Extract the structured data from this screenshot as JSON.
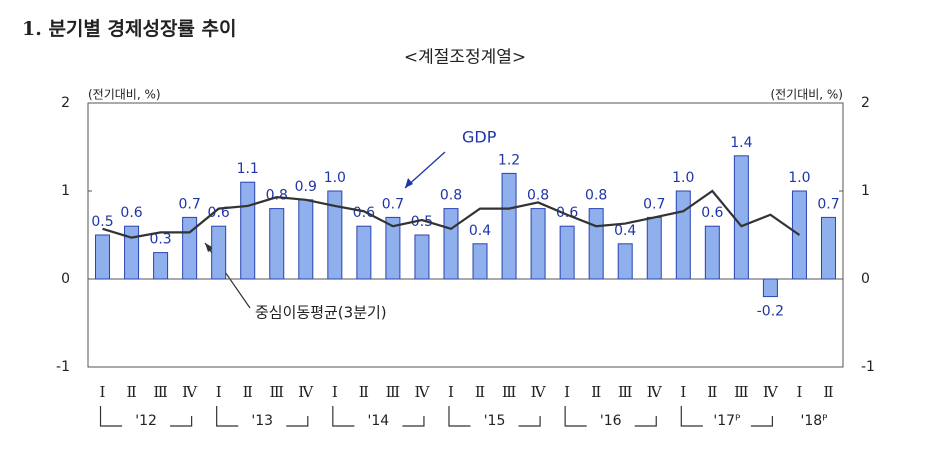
{
  "chart_data": {
    "type": "bar",
    "title": "1. 분기별 경제성장률 추이",
    "subtitle": "<계절조정계열>",
    "y_label": "(전기대비, %)",
    "y2_label": "(전기대비, %)",
    "categories": [
      "Ⅰ",
      "Ⅱ",
      "Ⅲ",
      "Ⅳ",
      "Ⅰ",
      "Ⅱ",
      "Ⅲ",
      "Ⅳ",
      "Ⅰ",
      "Ⅱ",
      "Ⅲ",
      "Ⅳ",
      "Ⅰ",
      "Ⅱ",
      "Ⅲ",
      "Ⅳ",
      "Ⅰ",
      "Ⅱ",
      "Ⅲ",
      "Ⅳ",
      "Ⅰ",
      "Ⅱ",
      "Ⅲ",
      "Ⅳ",
      "Ⅰ",
      "Ⅱ"
    ],
    "year_groups": [
      "'12",
      "'13",
      "'14",
      "'15",
      "'16",
      "'17ᴾ",
      "'18ᴾ"
    ],
    "series": [
      {
        "name": "GDP",
        "type": "bar",
        "color": "#8fb0ec",
        "values": [
          0.5,
          0.6,
          0.3,
          0.7,
          0.6,
          1.1,
          0.8,
          0.9,
          1.0,
          0.6,
          0.7,
          0.5,
          0.8,
          0.4,
          1.2,
          0.8,
          0.6,
          0.8,
          0.4,
          0.7,
          1.0,
          0.6,
          1.4,
          -0.2,
          1.0,
          0.7
        ],
        "value_labels": [
          "0.5",
          "0.6",
          "0.3",
          "0.7",
          "0.6",
          "1.1",
          "0.8",
          "0.9",
          "1.0",
          "0.6",
          "0.7",
          "0.5",
          "0.8",
          "0.4",
          "1.2",
          "0.8",
          "0.6",
          "0.8",
          "0.4",
          "0.7",
          "1.0",
          "0.6",
          "1.4",
          "-0.2",
          "1.0",
          "0.7"
        ]
      },
      {
        "name": "중심이동평균(3분기)",
        "type": "line",
        "color": "#333333",
        "values": [
          0.57,
          0.47,
          0.53,
          0.53,
          0.8,
          0.83,
          0.93,
          0.9,
          0.83,
          0.77,
          0.6,
          0.67,
          0.57,
          0.8,
          0.8,
          0.87,
          0.73,
          0.6,
          0.63,
          0.7,
          0.77,
          1.0,
          0.6,
          0.73,
          0.5,
          null
        ]
      }
    ],
    "ylim": [
      -1,
      2
    ],
    "yticks": [
      -1,
      0,
      1,
      2
    ],
    "y2lim": [
      -1,
      2
    ],
    "y2ticks": [
      -1,
      0,
      1,
      2
    ]
  }
}
